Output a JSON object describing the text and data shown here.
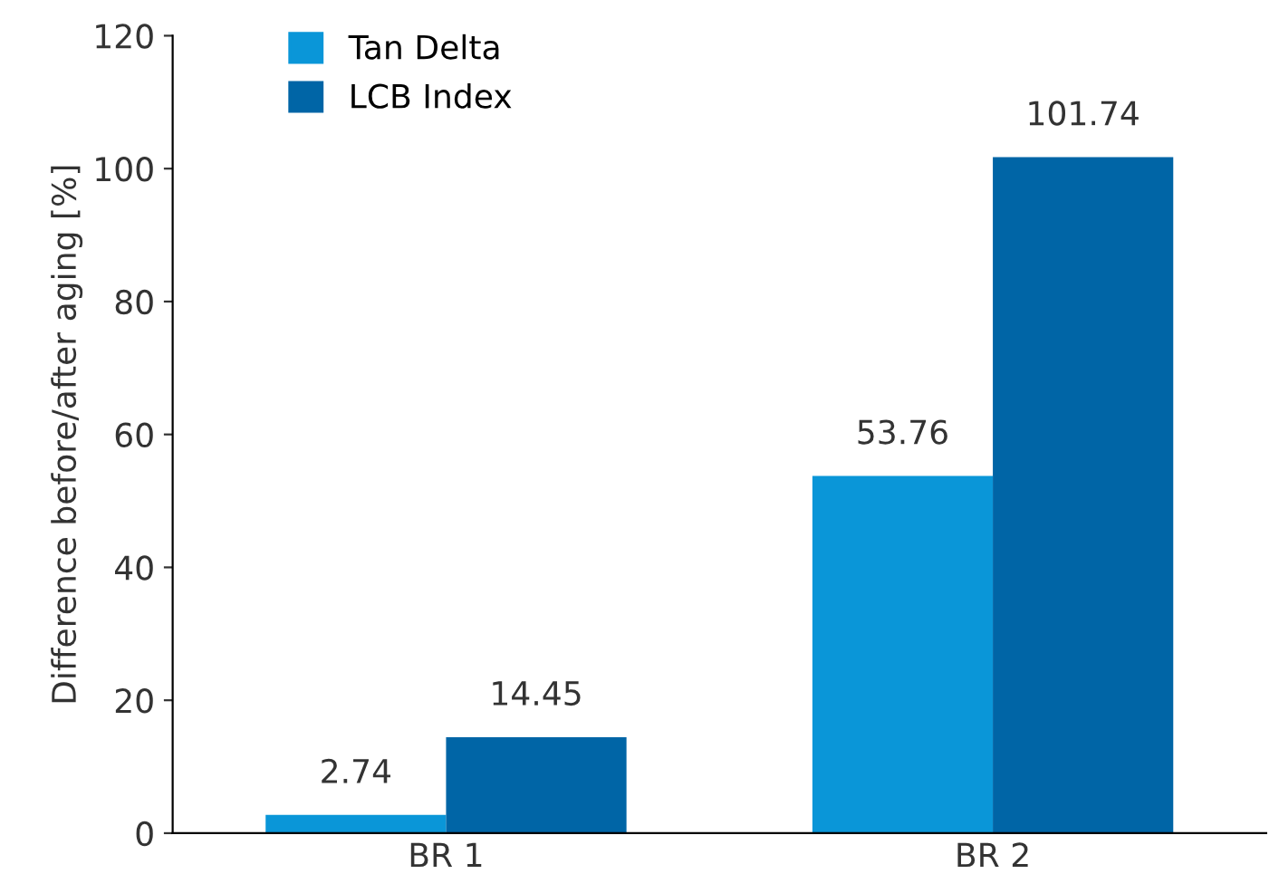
{
  "chart_data": {
    "type": "bar",
    "ylabel": "Difference before/after aging [%]",
    "categories": [
      "BR 1",
      "BR 2"
    ],
    "series": [
      {
        "name": "Tan Delta",
        "color": "#0a96d8",
        "values": [
          2.74,
          53.76
        ]
      },
      {
        "name": "LCB Index",
        "color": "#0065a6",
        "values": [
          14.45,
          101.74
        ]
      }
    ],
    "ylim": [
      0,
      120
    ],
    "yticks": [
      0,
      20,
      40,
      60,
      80,
      100,
      120
    ],
    "grid": false,
    "legend": "top left",
    "data_labels": true
  }
}
